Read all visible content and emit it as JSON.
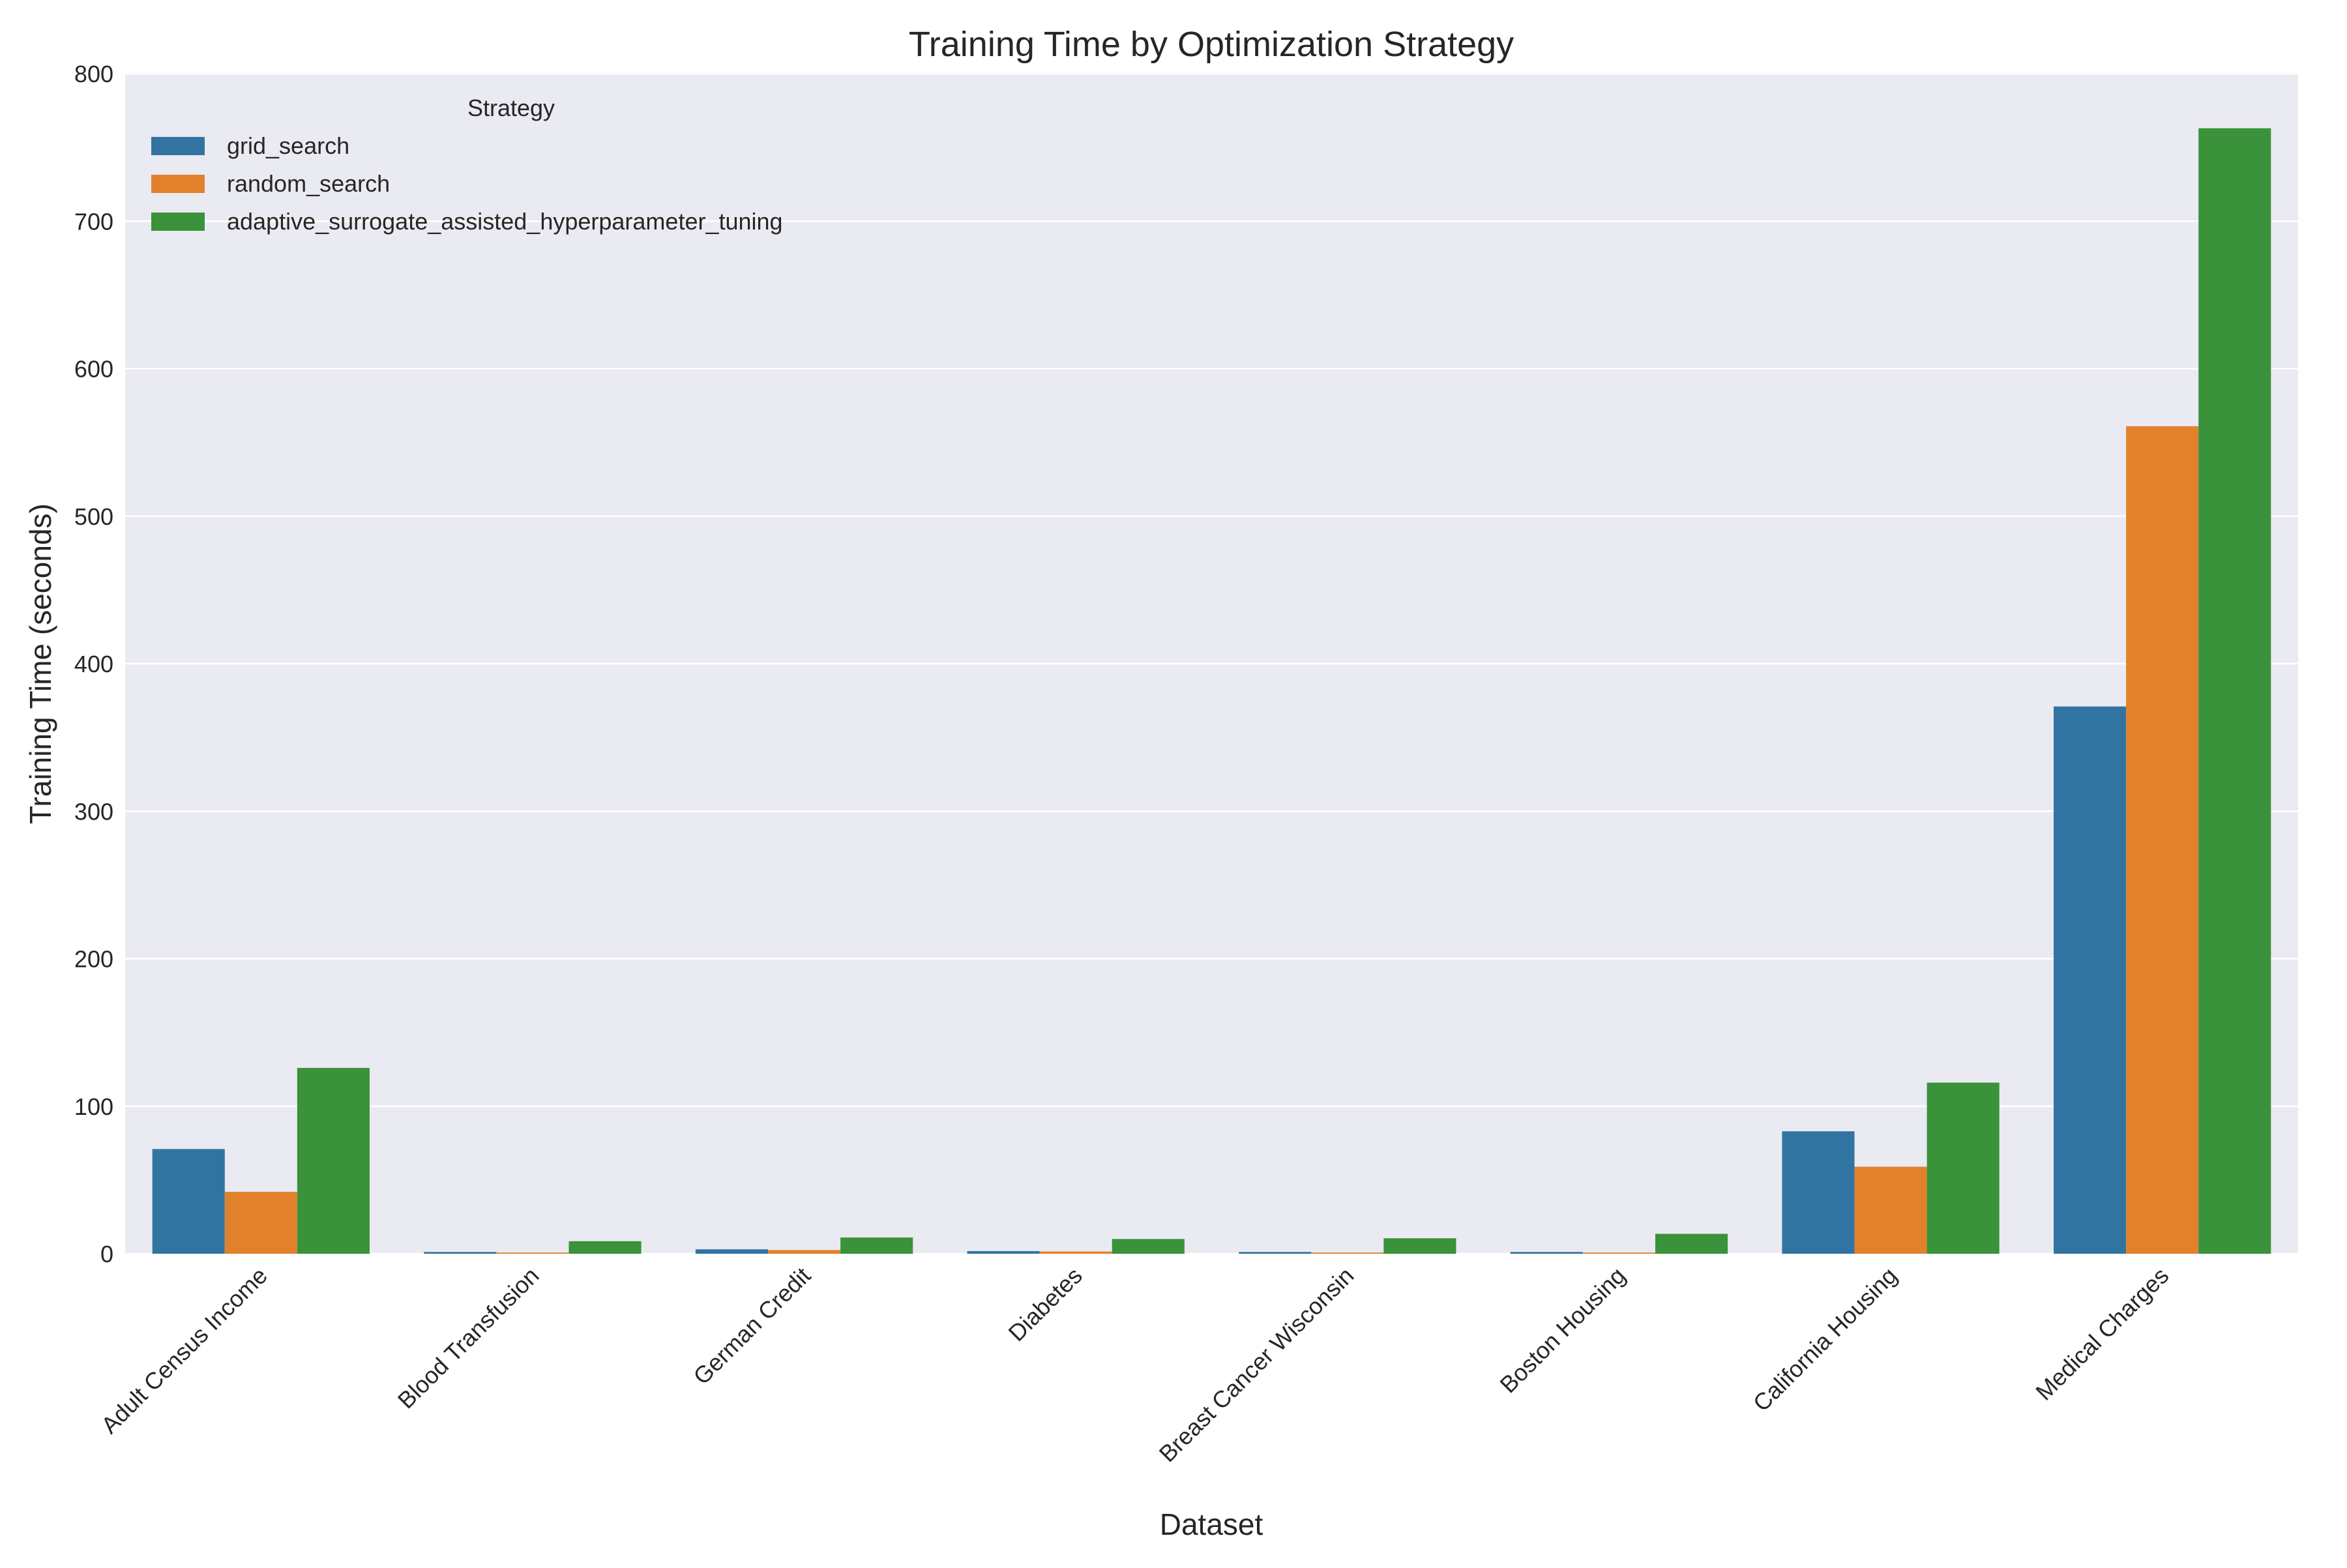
{
  "chart_data": {
    "type": "bar",
    "title": "Training Time by Optimization Strategy",
    "xlabel": "Dataset",
    "ylabel": "Training Time (seconds)",
    "ylim": [
      0,
      800
    ],
    "yticks": [
      "0",
      "100",
      "200",
      "300",
      "400",
      "500",
      "600",
      "700",
      "800"
    ],
    "grid": true,
    "legend": {
      "title": "Strategy",
      "placement": "top-left"
    },
    "categories": [
      "Adult Census Income",
      "Blood Transfusion",
      "German Credit",
      "Diabetes",
      "Breast Cancer Wisconsin",
      "Boston Housing",
      "California Housing",
      "Medical Charges"
    ],
    "series": [
      {
        "name": "grid_search",
        "color": "#3274a1",
        "values": [
          71,
          1.2,
          3.0,
          1.8,
          1.2,
          1.2,
          83,
          371
        ]
      },
      {
        "name": "random_search",
        "color": "#e1812c",
        "values": [
          42,
          0.8,
          2.5,
          1.5,
          0.8,
          0.8,
          59,
          561
        ]
      },
      {
        "name": "adaptive_surrogate_assisted_hyperparameter_tuning",
        "color": "#3a923a",
        "values": [
          126,
          8.5,
          11,
          10,
          10.5,
          13.5,
          116,
          763
        ]
      }
    ],
    "colors": {
      "plot_background": "#eaeaf2",
      "grid": "#ffffff",
      "text": "#262626"
    }
  }
}
